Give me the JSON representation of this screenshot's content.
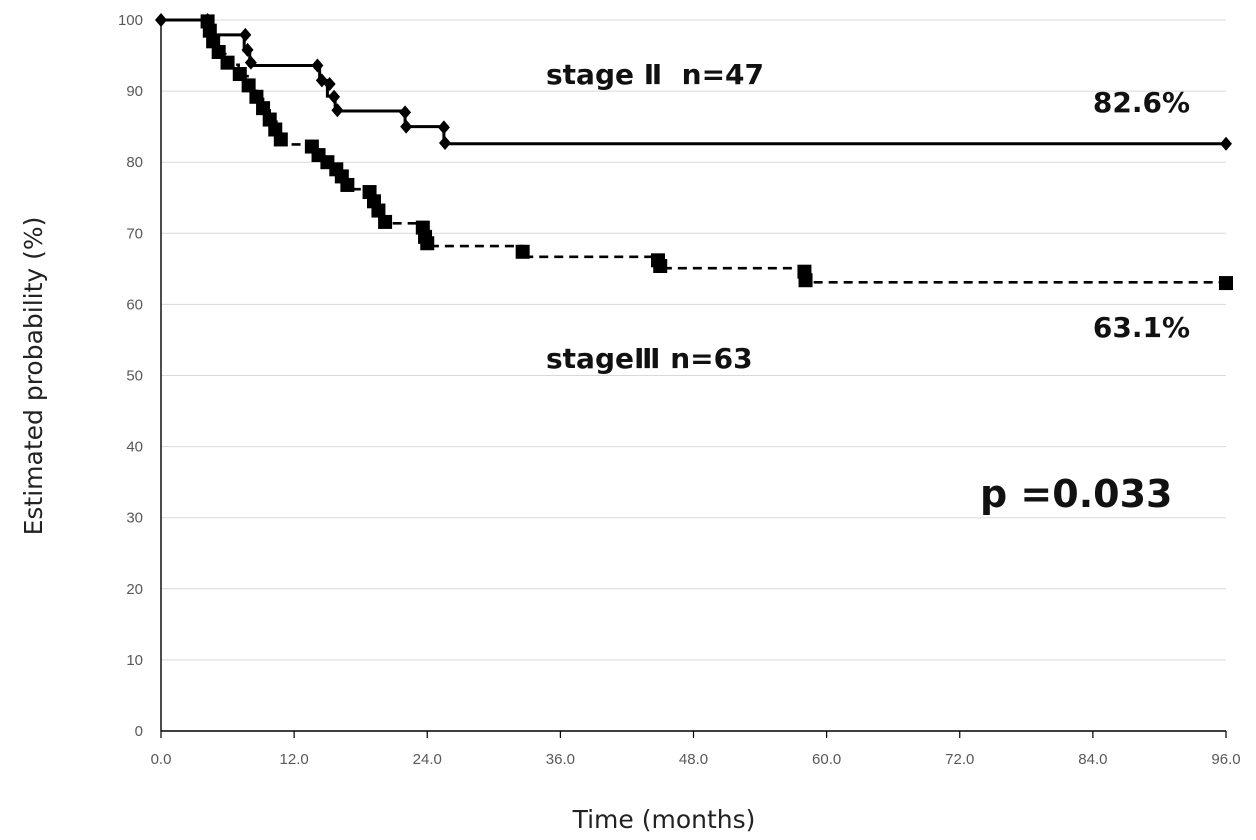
{
  "chart_data": {
    "type": "line",
    "subtype": "kaplan-meier step curve",
    "title": "",
    "xlabel": "Time (months)",
    "ylabel": "Estimated probability (%)",
    "xlim": [
      0,
      96
    ],
    "ylim": [
      0,
      100
    ],
    "x_ticks": [
      "0.0",
      "12.0",
      "24.0",
      "36.0",
      "48.0",
      "60.0",
      "72.0",
      "84.0",
      "96.0"
    ],
    "y_ticks": [
      "0",
      "10",
      "20",
      "30",
      "40",
      "50",
      "60",
      "70",
      "80",
      "90",
      "100"
    ],
    "grid": "horizontal",
    "legend": "none",
    "series": [
      {
        "label_text": "stage Ⅱ  n=47",
        "line_style": "solid",
        "marker": "diamond",
        "color": "#000000",
        "final_label": "82.6%",
        "steps": [
          [
            0,
            100
          ],
          [
            4.5,
            97.9
          ],
          [
            7.5,
            95.7
          ],
          [
            8.0,
            93.6
          ],
          [
            14.3,
            91.5
          ],
          [
            15.0,
            89.3
          ],
          [
            15.7,
            87.2
          ],
          [
            22.0,
            85.0
          ],
          [
            25.5,
            82.6
          ],
          [
            96,
            82.6
          ]
        ],
        "markers": [
          [
            0,
            100
          ],
          [
            4.2,
            100
          ],
          [
            4.5,
            98.0
          ],
          [
            7.6,
            97.9
          ],
          [
            7.8,
            95.8
          ],
          [
            8.1,
            94.0
          ],
          [
            14.1,
            93.6
          ],
          [
            14.5,
            91.5
          ],
          [
            15.2,
            91.0
          ],
          [
            15.6,
            89.2
          ],
          [
            15.9,
            87.3
          ],
          [
            22.0,
            87.0
          ],
          [
            22.1,
            85.0
          ],
          [
            25.5,
            84.9
          ],
          [
            25.6,
            82.7
          ],
          [
            96,
            82.6
          ]
        ]
      },
      {
        "label_text": "stageⅢ n=63",
        "line_style": "dashed",
        "marker": "square",
        "color": "#000000",
        "final_label": "63.1%",
        "steps": [
          [
            0,
            100
          ],
          [
            4.3,
            98.4
          ],
          [
            4.6,
            96.8
          ],
          [
            5.0,
            95.2
          ],
          [
            5.8,
            93.7
          ],
          [
            7.0,
            92.1
          ],
          [
            8.0,
            90.5
          ],
          [
            8.6,
            88.9
          ],
          [
            9.2,
            87.3
          ],
          [
            9.8,
            85.7
          ],
          [
            10.4,
            84.1
          ],
          [
            11.0,
            82.5
          ],
          [
            13.7,
            81.0
          ],
          [
            14.5,
            79.4
          ],
          [
            15.8,
            77.8
          ],
          [
            16.6,
            76.2
          ],
          [
            18.8,
            74.6
          ],
          [
            19.2,
            73.0
          ],
          [
            20.0,
            71.4
          ],
          [
            23.6,
            69.8
          ],
          [
            23.9,
            68.2
          ],
          [
            32.6,
            66.7
          ],
          [
            44.8,
            65.1
          ],
          [
            58.0,
            63.1
          ],
          [
            96,
            63.1
          ]
        ],
        "markers": [
          [
            4.2,
            99.8
          ],
          [
            4.4,
            98.5
          ],
          [
            4.7,
            97.0
          ],
          [
            5.2,
            95.5
          ],
          [
            6.0,
            94.0
          ],
          [
            7.1,
            92.4
          ],
          [
            7.9,
            90.8
          ],
          [
            8.6,
            89.2
          ],
          [
            9.2,
            87.6
          ],
          [
            9.8,
            86.0
          ],
          [
            10.3,
            84.6
          ],
          [
            10.8,
            83.2
          ],
          [
            13.6,
            82.2
          ],
          [
            14.2,
            81.0
          ],
          [
            15.0,
            80.0
          ],
          [
            15.8,
            79.0
          ],
          [
            16.3,
            78.0
          ],
          [
            16.8,
            76.8
          ],
          [
            18.8,
            75.8
          ],
          [
            19.2,
            74.5
          ],
          [
            19.6,
            73.2
          ],
          [
            20.2,
            71.6
          ],
          [
            23.6,
            70.8
          ],
          [
            23.8,
            69.5
          ],
          [
            24.0,
            68.6
          ],
          [
            32.6,
            67.4
          ],
          [
            44.8,
            66.2
          ],
          [
            45.0,
            65.4
          ],
          [
            58.0,
            64.6
          ],
          [
            58.1,
            63.4
          ],
          [
            96,
            63.0
          ]
        ]
      }
    ],
    "annotations": [
      {
        "text": "p =0.033"
      }
    ]
  }
}
